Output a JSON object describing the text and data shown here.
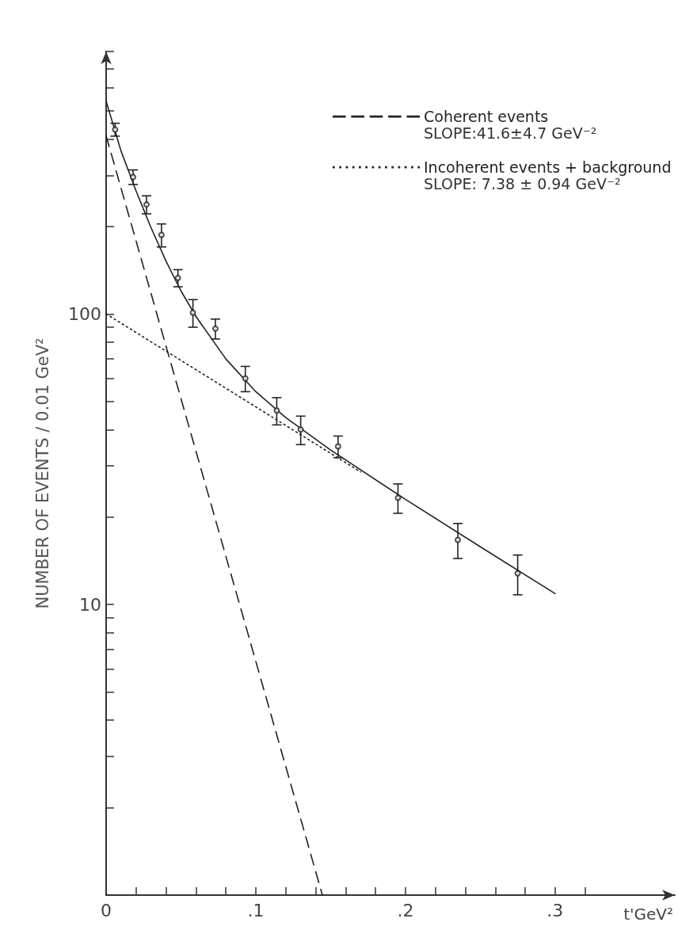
{
  "chart_data": {
    "type": "scatter",
    "xlabel": "t'GeV²",
    "ylabel": "NUMBER OF EVENTS / 0.01 GeV²",
    "log": "y",
    "grid": false,
    "legend": "top right",
    "xlim": [
      0,
      0.38
    ],
    "ylim": [
      1,
      800
    ],
    "xticks": [
      {
        "value": 0,
        "label": "0"
      },
      {
        "value": 0.02,
        "label": null
      },
      {
        "value": 0.04,
        "label": null
      },
      {
        "value": 0.06,
        "label": null
      },
      {
        "value": 0.08,
        "label": null
      },
      {
        "value": 0.1,
        "label": ".1"
      },
      {
        "value": 0.12,
        "label": null
      },
      {
        "value": 0.14,
        "label": null
      },
      {
        "value": 0.16,
        "label": null
      },
      {
        "value": 0.18,
        "label": null
      },
      {
        "value": 0.2,
        "label": ".2"
      },
      {
        "value": 0.22,
        "label": null
      },
      {
        "value": 0.24,
        "label": null
      },
      {
        "value": 0.26,
        "label": null
      },
      {
        "value": 0.28,
        "label": null
      },
      {
        "value": 0.3,
        "label": ".3"
      },
      {
        "value": 0.32,
        "label": null
      }
    ],
    "yticks": [
      {
        "value": 2,
        "label": null
      },
      {
        "value": 3,
        "label": null
      },
      {
        "value": 4,
        "label": null
      },
      {
        "value": 5,
        "label": null
      },
      {
        "value": 6,
        "label": null
      },
      {
        "value": 7,
        "label": null
      },
      {
        "value": 8,
        "label": null
      },
      {
        "value": 9,
        "label": null
      },
      10,
      {
        "value": 20,
        "label": null
      },
      {
        "value": 30,
        "label": null
      },
      {
        "value": 40,
        "label": null
      },
      {
        "value": 50,
        "label": null
      },
      {
        "value": 60,
        "label": null
      },
      {
        "value": 70,
        "label": null
      },
      {
        "value": 80,
        "label": null
      },
      {
        "value": 90,
        "label": null
      },
      100,
      {
        "value": 200,
        "label": null
      },
      {
        "value": 300,
        "label": null
      },
      {
        "value": 400,
        "label": null
      },
      {
        "value": 500,
        "label": null
      },
      {
        "value": 600,
        "label": null
      },
      {
        "value": 700,
        "label": null
      },
      {
        "value": 800,
        "label": null
      }
    ],
    "annotations": [
      "SLOPE:41.6±4.7 GeV⁻²",
      "SLOPE: 7.38 ± 0.94 GeV⁻²"
    ],
    "series": [
      {
        "name": "Coherent events",
        "type": "line",
        "color": "#222222",
        "line_style": "dashed",
        "marker": "none",
        "x": [
          0,
          0.1445
        ],
        "values": [
          410,
          1
        ]
      },
      {
        "name": "Incoherent events + background",
        "type": "line",
        "color": "#222222",
        "line_style": "dotted",
        "marker": "none",
        "x": [
          0,
          0.17
        ],
        "values": [
          100,
          28.6
        ]
      },
      {
        "type": "line",
        "color": "#222222",
        "line_style": "solid",
        "marker": "none",
        "x": [
          0,
          0.01,
          0.02,
          0.03,
          0.04,
          0.05,
          0.06,
          0.08,
          0.1,
          0.12,
          0.15,
          0.2,
          0.25,
          0.3
        ],
        "values": [
          540,
          363,
          265,
          198,
          152,
          120,
          98,
          70,
          54,
          44,
          34,
          23,
          15.8,
          10.9
        ]
      },
      {
        "color": "#222222",
        "marker": "circle",
        "x": [
          0.006,
          0.018,
          0.027,
          0.037,
          0.048,
          0.058,
          0.073,
          0.093,
          0.114,
          0.13,
          0.155,
          0.195,
          0.235,
          0.275
        ],
        "values": [
          431,
          296,
          238,
          187,
          133,
          101,
          89,
          60,
          46.5,
          40,
          35,
          23.3,
          16.7,
          12.8
        ],
        "errors": [
          22,
          17,
          17,
          17,
          9,
          11,
          7,
          6,
          5,
          4.5,
          3,
          2.7,
          2.3,
          2
        ]
      }
    ]
  }
}
